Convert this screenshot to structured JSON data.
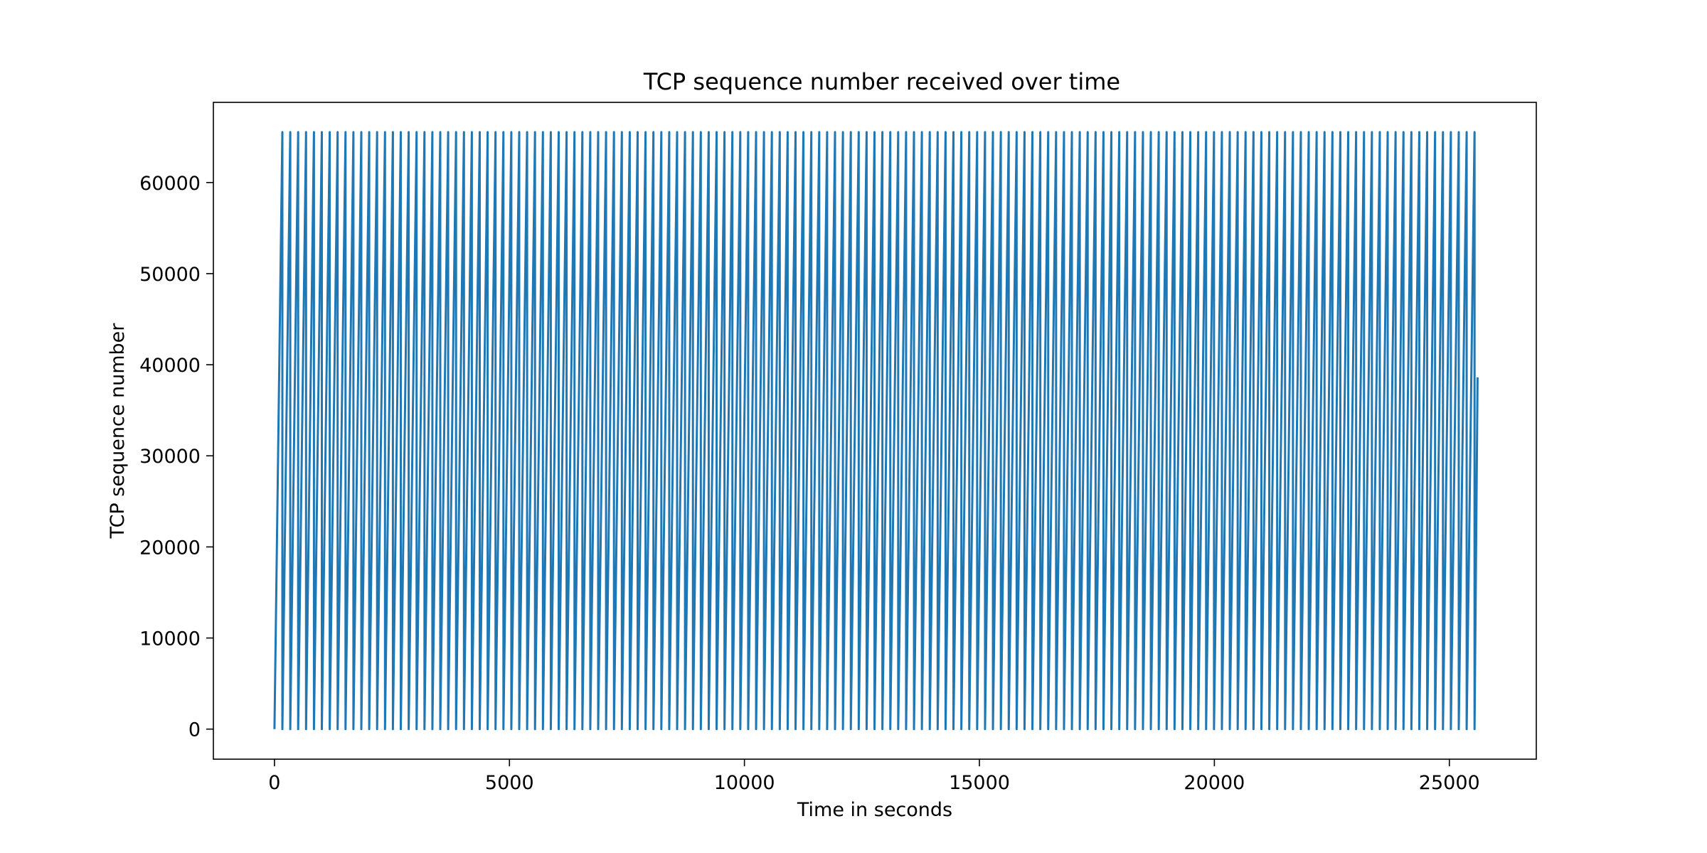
{
  "chart_data": {
    "type": "line",
    "title": "TCP sequence number received over time",
    "xlabel": "Time in seconds",
    "ylabel": "TCP sequence number",
    "xlim": [
      -1300,
      26850
    ],
    "ylim": [
      -3300,
      68800
    ],
    "xticks": [
      0,
      5000,
      10000,
      15000,
      20000,
      25000
    ],
    "xtick_labels": [
      "0",
      "5000",
      "10000",
      "15000",
      "20000",
      "25000"
    ],
    "yticks": [
      0,
      10000,
      20000,
      30000,
      40000,
      50000,
      60000
    ],
    "ytick_labels": [
      "0",
      "10000",
      "20000",
      "30000",
      "40000",
      "50000",
      "60000"
    ],
    "grid": false,
    "series": [
      {
        "name": "TCP sequence number",
        "color": "#1f77b4",
        "pattern": "sawtooth",
        "x_start": 0,
        "x_end": 25600,
        "y_min": 0,
        "y_max": 65535,
        "cycle_seconds": 168,
        "final_value": 38600
      }
    ]
  }
}
